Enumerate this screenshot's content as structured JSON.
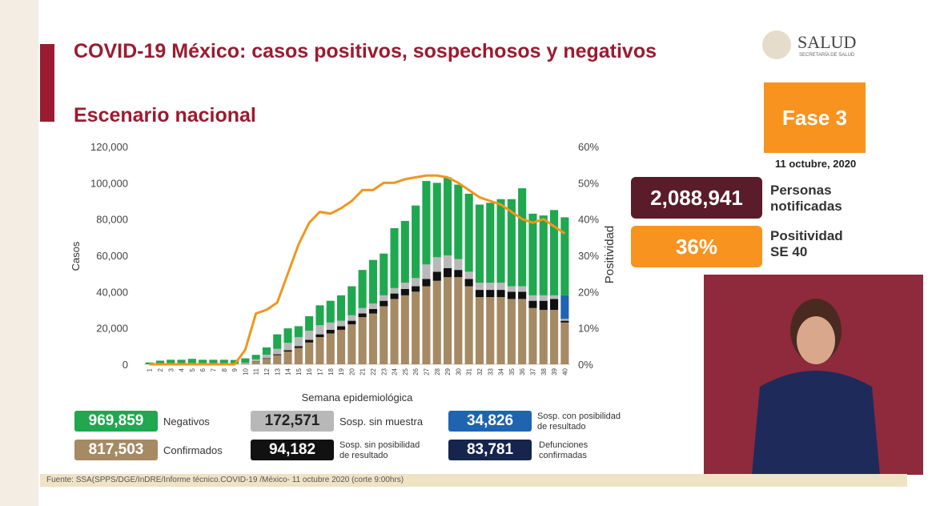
{
  "header": {
    "title": "COVID-19 México: casos positivos, sospechosos y negativos",
    "subtitle": "Escenario nacional",
    "logo": "SALUD",
    "logo_sub": "SECRETARÍA DE SALUD"
  },
  "phase": {
    "label": "Fase 3",
    "date": "11 octubre, 2020"
  },
  "kpis": [
    {
      "value": "2,088,941",
      "label": "Personas notificadas"
    },
    {
      "value": "36%",
      "label": "Positividad SE 40"
    }
  ],
  "deaths": {
    "value": "83,781",
    "label": "Defunciones confirmadas"
  },
  "source": "Fuente: SSA(SPPS/DGE/InDRE/Informe técnico.COVID-19 /México- 11 octubre 2020 (corte 9:00hrs)",
  "chart_data": {
    "type": "bar",
    "xlabel": "Semana epidemiológica",
    "ylabel": "Casos",
    "y2label": "Positividad",
    "categories": [
      "1",
      "2",
      "3",
      "4",
      "5",
      "6",
      "7",
      "8",
      "9",
      "10",
      "11",
      "12",
      "13",
      "14",
      "15",
      "16",
      "17",
      "18",
      "19",
      "20",
      "21",
      "22",
      "23",
      "24",
      "25",
      "26",
      "27",
      "28",
      "29",
      "30",
      "31",
      "32",
      "33",
      "34",
      "35",
      "36",
      "37",
      "38",
      "39",
      "40"
    ],
    "ylim": [
      0,
      120000
    ],
    "yticks": [
      {
        "value": 0,
        "label": "0"
      },
      {
        "value": 20000,
        "label": "20,000"
      },
      {
        "value": 40000,
        "label": "40,000"
      },
      {
        "value": 60000,
        "label": "60,000"
      },
      {
        "value": 80000,
        "label": "80,000"
      },
      {
        "value": 100000,
        "label": "100,000"
      },
      {
        "value": 120000,
        "label": "120,000"
      }
    ],
    "y2lim": [
      0,
      60
    ],
    "y2ticks": [
      {
        "value": 0,
        "label": "0%"
      },
      {
        "value": 10,
        "label": "10%"
      },
      {
        "value": 20,
        "label": "20%"
      },
      {
        "value": 30,
        "label": "30%"
      },
      {
        "value": 40,
        "label": "40%"
      },
      {
        "value": 50,
        "label": "50%"
      },
      {
        "value": 60,
        "label": "60%"
      }
    ],
    "grid": false,
    "series": [
      {
        "name": "Confirmados",
        "total": "817,503",
        "color": "#a68a64",
        "values": [
          0,
          0,
          0,
          0,
          0,
          0,
          0,
          100,
          200,
          500,
          1500,
          3000,
          5000,
          7000,
          9000,
          12000,
          15000,
          17000,
          19000,
          22000,
          26000,
          28000,
          32000,
          36000,
          38000,
          40000,
          43000,
          46000,
          48000,
          48000,
          43000,
          37000,
          37000,
          37000,
          36000,
          36000,
          31000,
          30000,
          30000,
          23000
        ]
      },
      {
        "name": "Sosp. sin posibilidad de resultado",
        "total": "94,182",
        "color": "#111111",
        "values": [
          0,
          0,
          0,
          0,
          0,
          0,
          0,
          0,
          0,
          0,
          200,
          300,
          500,
          800,
          1000,
          1500,
          1500,
          2000,
          2000,
          2000,
          2000,
          2500,
          3000,
          3000,
          3500,
          3000,
          4000,
          5000,
          5000,
          4000,
          4000,
          4000,
          4000,
          4000,
          4000,
          4000,
          4000,
          5000,
          6000,
          1000
        ]
      },
      {
        "name": "Sosp. sin muestra",
        "total": "172,571",
        "color": "#b8b8b8",
        "values": [
          0,
          0,
          0,
          0,
          0,
          0,
          0,
          100,
          200,
          300,
          1000,
          2000,
          3000,
          4000,
          5000,
          5000,
          5000,
          4000,
          3000,
          3000,
          3000,
          3000,
          3000,
          3000,
          3500,
          4500,
          8000,
          8000,
          7000,
          6000,
          4000,
          4000,
          4000,
          4000,
          3000,
          3000,
          3000,
          3000,
          2000,
          1000
        ]
      },
      {
        "name": "Sosp. con posibilidad de resultado",
        "total": "34,826",
        "color": "#1f64b0",
        "values": [
          0,
          0,
          0,
          0,
          0,
          0,
          0,
          0,
          0,
          0,
          0,
          0,
          0,
          0,
          0,
          0,
          0,
          0,
          0,
          0,
          0,
          0,
          0,
          0,
          0,
          0,
          0,
          0,
          0,
          0,
          0,
          0,
          0,
          0,
          0,
          0,
          0,
          0,
          0,
          13000
        ]
      },
      {
        "name": "Negativos",
        "total": "969,859",
        "color": "#1fa84f",
        "values": [
          1000,
          2000,
          2500,
          2500,
          3000,
          2500,
          2500,
          2300,
          2000,
          2500,
          2500,
          4000,
          8000,
          8000,
          6000,
          8000,
          11000,
          12000,
          14000,
          16000,
          21000,
          24000,
          23000,
          33000,
          34000,
          40000,
          46000,
          41000,
          43000,
          41000,
          43000,
          43000,
          44000,
          46000,
          48000,
          54000,
          45000,
          44000,
          47000,
          43000
        ]
      }
    ],
    "positivity": {
      "axis": "y2",
      "color": "#f0961e",
      "values": [
        0,
        0,
        0,
        0,
        0,
        0,
        0,
        0,
        0,
        4,
        14,
        15,
        17,
        25,
        33,
        39,
        42,
        41.5,
        43,
        45,
        48,
        48,
        50,
        50,
        51,
        51.5,
        52,
        52,
        51.5,
        50,
        48,
        46,
        45,
        44,
        42,
        40,
        39,
        40,
        38,
        36
      ]
    }
  }
}
